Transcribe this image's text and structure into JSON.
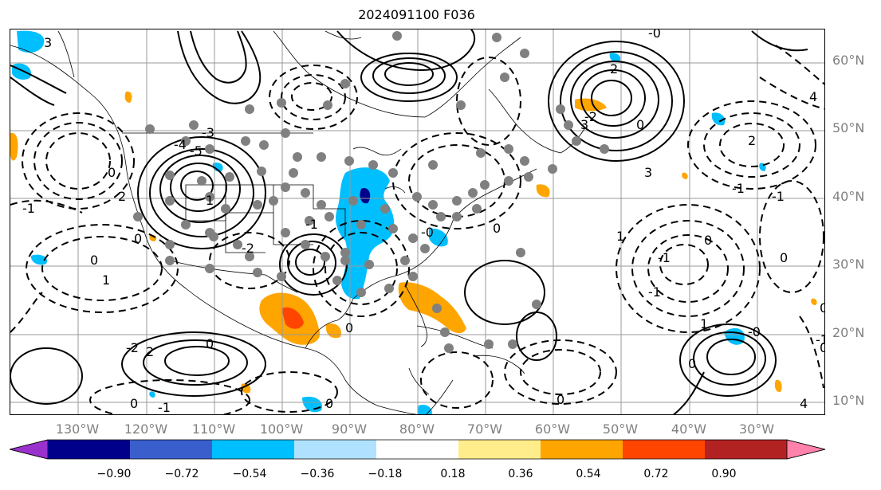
{
  "title": "2024091100 F036",
  "lat_labels": [
    "60°N",
    "50°N",
    "40°N",
    "30°N",
    "20°N",
    "10°N"
  ],
  "lon_labels": [
    "130°W",
    "120°W",
    "110°W",
    "100°W",
    "90°W",
    "80°W",
    "70°W",
    "60°W",
    "50°W",
    "40°W",
    "30°W"
  ],
  "colorbar": {
    "ticks": [
      "−0.90",
      "−0.72",
      "−0.54",
      "−0.36",
      "−0.18",
      "0.18",
      "0.36",
      "0.54",
      "0.72",
      "0.90"
    ],
    "colors": [
      "#9932CC",
      "#00008B",
      "#3A5FCD",
      "#00BFFF",
      "#B0E2FF",
      "#FFFFFF",
      "#FFEC8B",
      "#FFA500",
      "#FF4500",
      "#B22222",
      "#FF82AB"
    ]
  },
  "contour_labels": [
    "3",
    "-4",
    "-3",
    "-5",
    "0",
    "1",
    "2",
    "-2",
    "-1",
    "0",
    "0",
    "1",
    "-1",
    "0",
    "2",
    "-2",
    "0",
    "0",
    "-1",
    "0",
    "-0",
    "1",
    "3",
    "-1",
    "0",
    "4",
    "2",
    "-1",
    "0",
    "-2",
    "2",
    "0",
    "-1",
    "0",
    "1",
    "-0",
    "1",
    "0",
    "-1",
    "0",
    "0",
    "3",
    "-0",
    "-1",
    "4",
    "0"
  ]
}
